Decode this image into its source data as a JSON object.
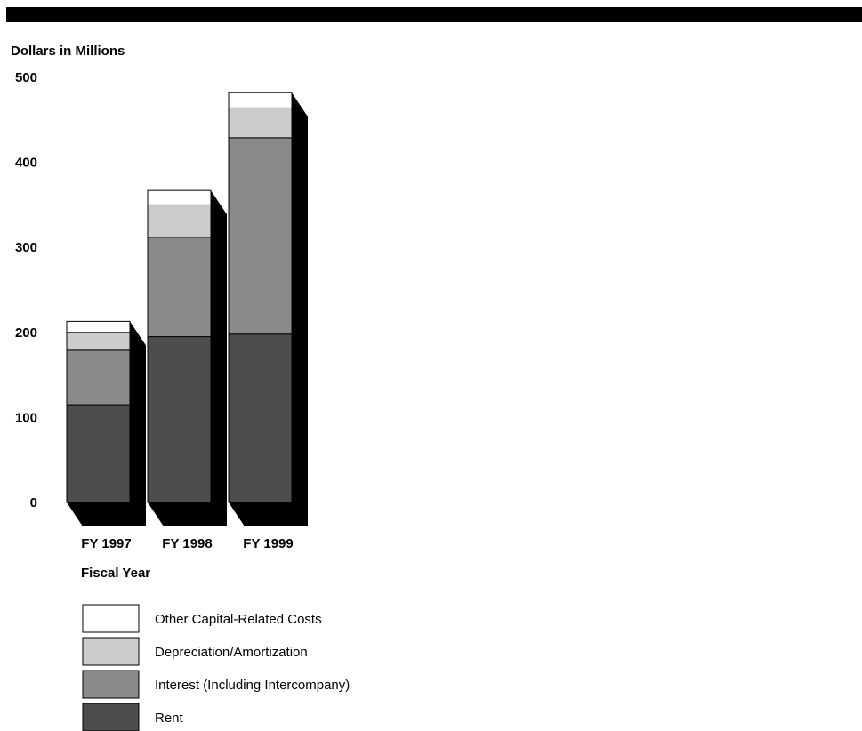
{
  "chart_data": {
    "type": "bar",
    "stacked": true,
    "ylabel": "Dollars in Millions",
    "xlabel": "Fiscal Year",
    "ylim": [
      0,
      500
    ],
    "yticks": [
      "0",
      "100",
      "200",
      "300",
      "400",
      "500"
    ],
    "categories": [
      "FY 1997",
      "FY 1998",
      "FY 1999"
    ],
    "series": [
      {
        "name": "Rent",
        "values": [
          115,
          195,
          198
        ],
        "color": "#4d4d4d"
      },
      {
        "name": "Interest (Including Intercompany)",
        "values": [
          64,
          117,
          231
        ],
        "color": "#8a8a8a"
      },
      {
        "name": "Depreciation/Amortization",
        "values": [
          21,
          38,
          35
        ],
        "color": "#cccccc"
      },
      {
        "name": "Other Capital-Related Costs",
        "values": [
          13,
          17,
          18
        ],
        "color": "#ffffff"
      }
    ],
    "legend_position": "bottom",
    "grid": false
  }
}
